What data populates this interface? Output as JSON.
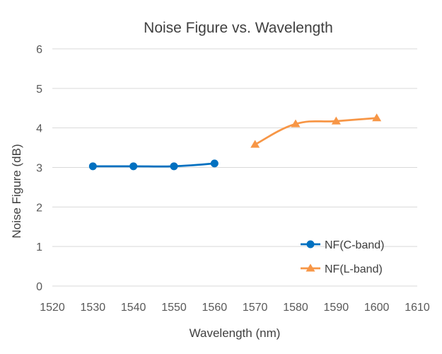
{
  "chart_data": {
    "type": "line",
    "title": "Noise Figure vs. Wavelength",
    "xlabel": "Wavelength (nm)",
    "ylabel": "Noise Figure (dB)",
    "xlim": [
      1520,
      1610
    ],
    "ylim": [
      0,
      6
    ],
    "xticks": [
      1520,
      1530,
      1540,
      1550,
      1560,
      1570,
      1580,
      1590,
      1600,
      1610
    ],
    "yticks": [
      0,
      1,
      2,
      3,
      4,
      5,
      6
    ],
    "grid": "horizontal",
    "legend_position": "bottom-right",
    "series": [
      {
        "name": "NF(C-band)",
        "color": "#0070C0",
        "marker": "circle",
        "x": [
          1530,
          1540,
          1550,
          1560
        ],
        "y": [
          3.03,
          3.03,
          3.03,
          3.1
        ]
      },
      {
        "name": "NF(L-band)",
        "color": "#F79646",
        "marker": "triangle",
        "x": [
          1570,
          1580,
          1590,
          1600
        ],
        "y": [
          3.58,
          4.1,
          4.17,
          4.25
        ]
      }
    ]
  }
}
